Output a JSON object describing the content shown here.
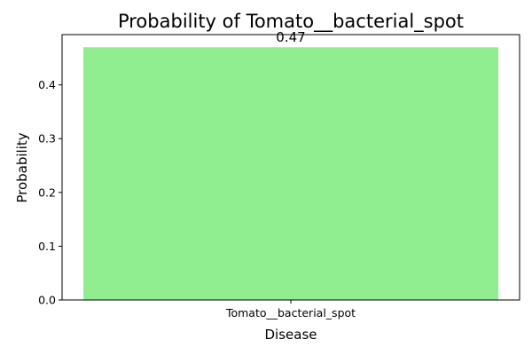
{
  "chart_data": {
    "type": "bar",
    "title": "Probability of Tomato__bacterial_spot",
    "xlabel": "Disease",
    "ylabel": "Probability",
    "categories": [
      "Tomato__bacterial_spot"
    ],
    "values": [
      0.47
    ],
    "value_labels": [
      "0.47"
    ],
    "ylim": [
      0,
      0.4935
    ],
    "yticks": [
      0.0,
      0.1,
      0.2,
      0.3,
      0.4
    ],
    "ytick_labels": [
      "0.0",
      "0.1",
      "0.2",
      "0.3",
      "0.4"
    ],
    "grid": false,
    "legend": "none",
    "bar_color": "#90ee90"
  }
}
